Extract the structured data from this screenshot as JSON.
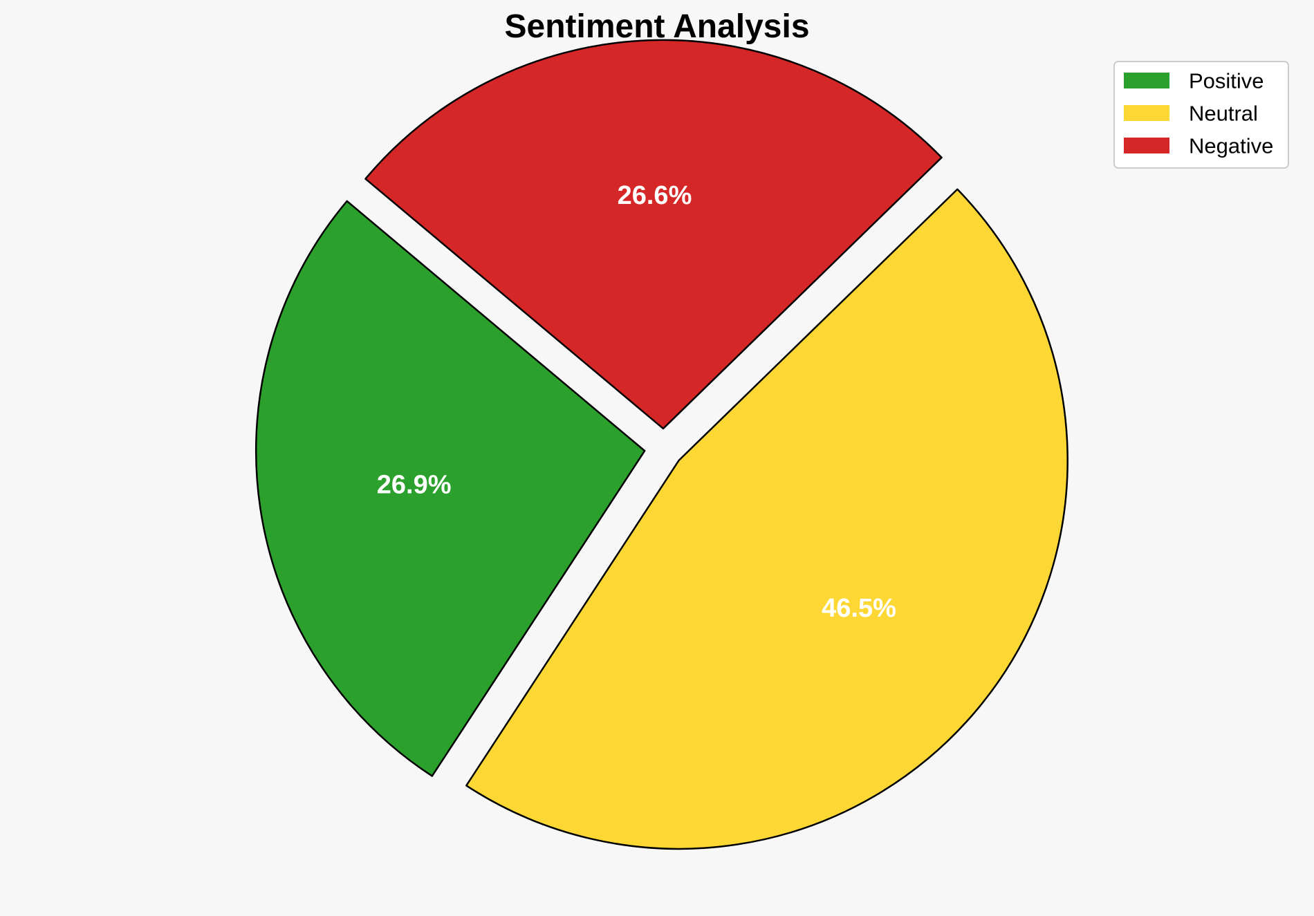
{
  "chart_data": {
    "type": "pie",
    "title": "Sentiment Analysis",
    "categories": [
      "Positive",
      "Neutral",
      "Negative"
    ],
    "values": [
      26.9,
      46.5,
      26.6
    ],
    "value_labels": [
      "26.9%",
      "46.5%",
      "26.6%"
    ],
    "colors": [
      "#2ca02c",
      "#fdd835",
      "#d62728"
    ],
    "explode": [
      0.05,
      0.05,
      0.05
    ],
    "start_angle_deg": 140,
    "direction": "counterclockwise",
    "edge_color": "#000000",
    "label_color": "#ffffff",
    "background": "#f7f7f7",
    "legend": {
      "entries": [
        "Positive",
        "Neutral",
        "Negative"
      ],
      "placement": "top-right"
    }
  }
}
